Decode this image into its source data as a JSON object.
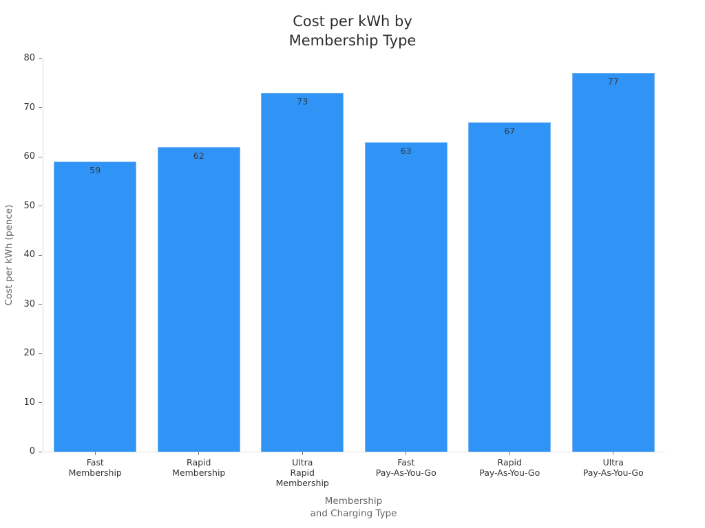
{
  "chart_data": {
    "type": "bar",
    "title": "Cost per kWh by\nMembership Type",
    "xlabel": "Membership\nand Charging Type",
    "ylabel": "Cost per kWh (pence)",
    "categories": [
      "Fast\nMembership",
      "Rapid\nMembership",
      "Ultra\nRapid\nMembership",
      "Fast\nPay-As-You-Go",
      "Rapid\nPay-As-You-Go",
      "Ultra\nPay-As-You-Go"
    ],
    "values": [
      59,
      62,
      73,
      63,
      67,
      77
    ],
    "value_labels": [
      "59",
      "62",
      "73",
      "63",
      "67",
      "77"
    ],
    "ylim": [
      0,
      80
    ],
    "yticks": [
      0,
      10,
      20,
      30,
      40,
      50,
      60,
      70,
      80
    ],
    "grid": false,
    "legend": "none",
    "bar_color": "#2f94f5",
    "bar_edge_color": "#7ab5f5",
    "background_color": "#ffffff",
    "title_color": "#2d2d2d",
    "tick_label_color": "#333333",
    "axis_title_color": "#666666"
  }
}
